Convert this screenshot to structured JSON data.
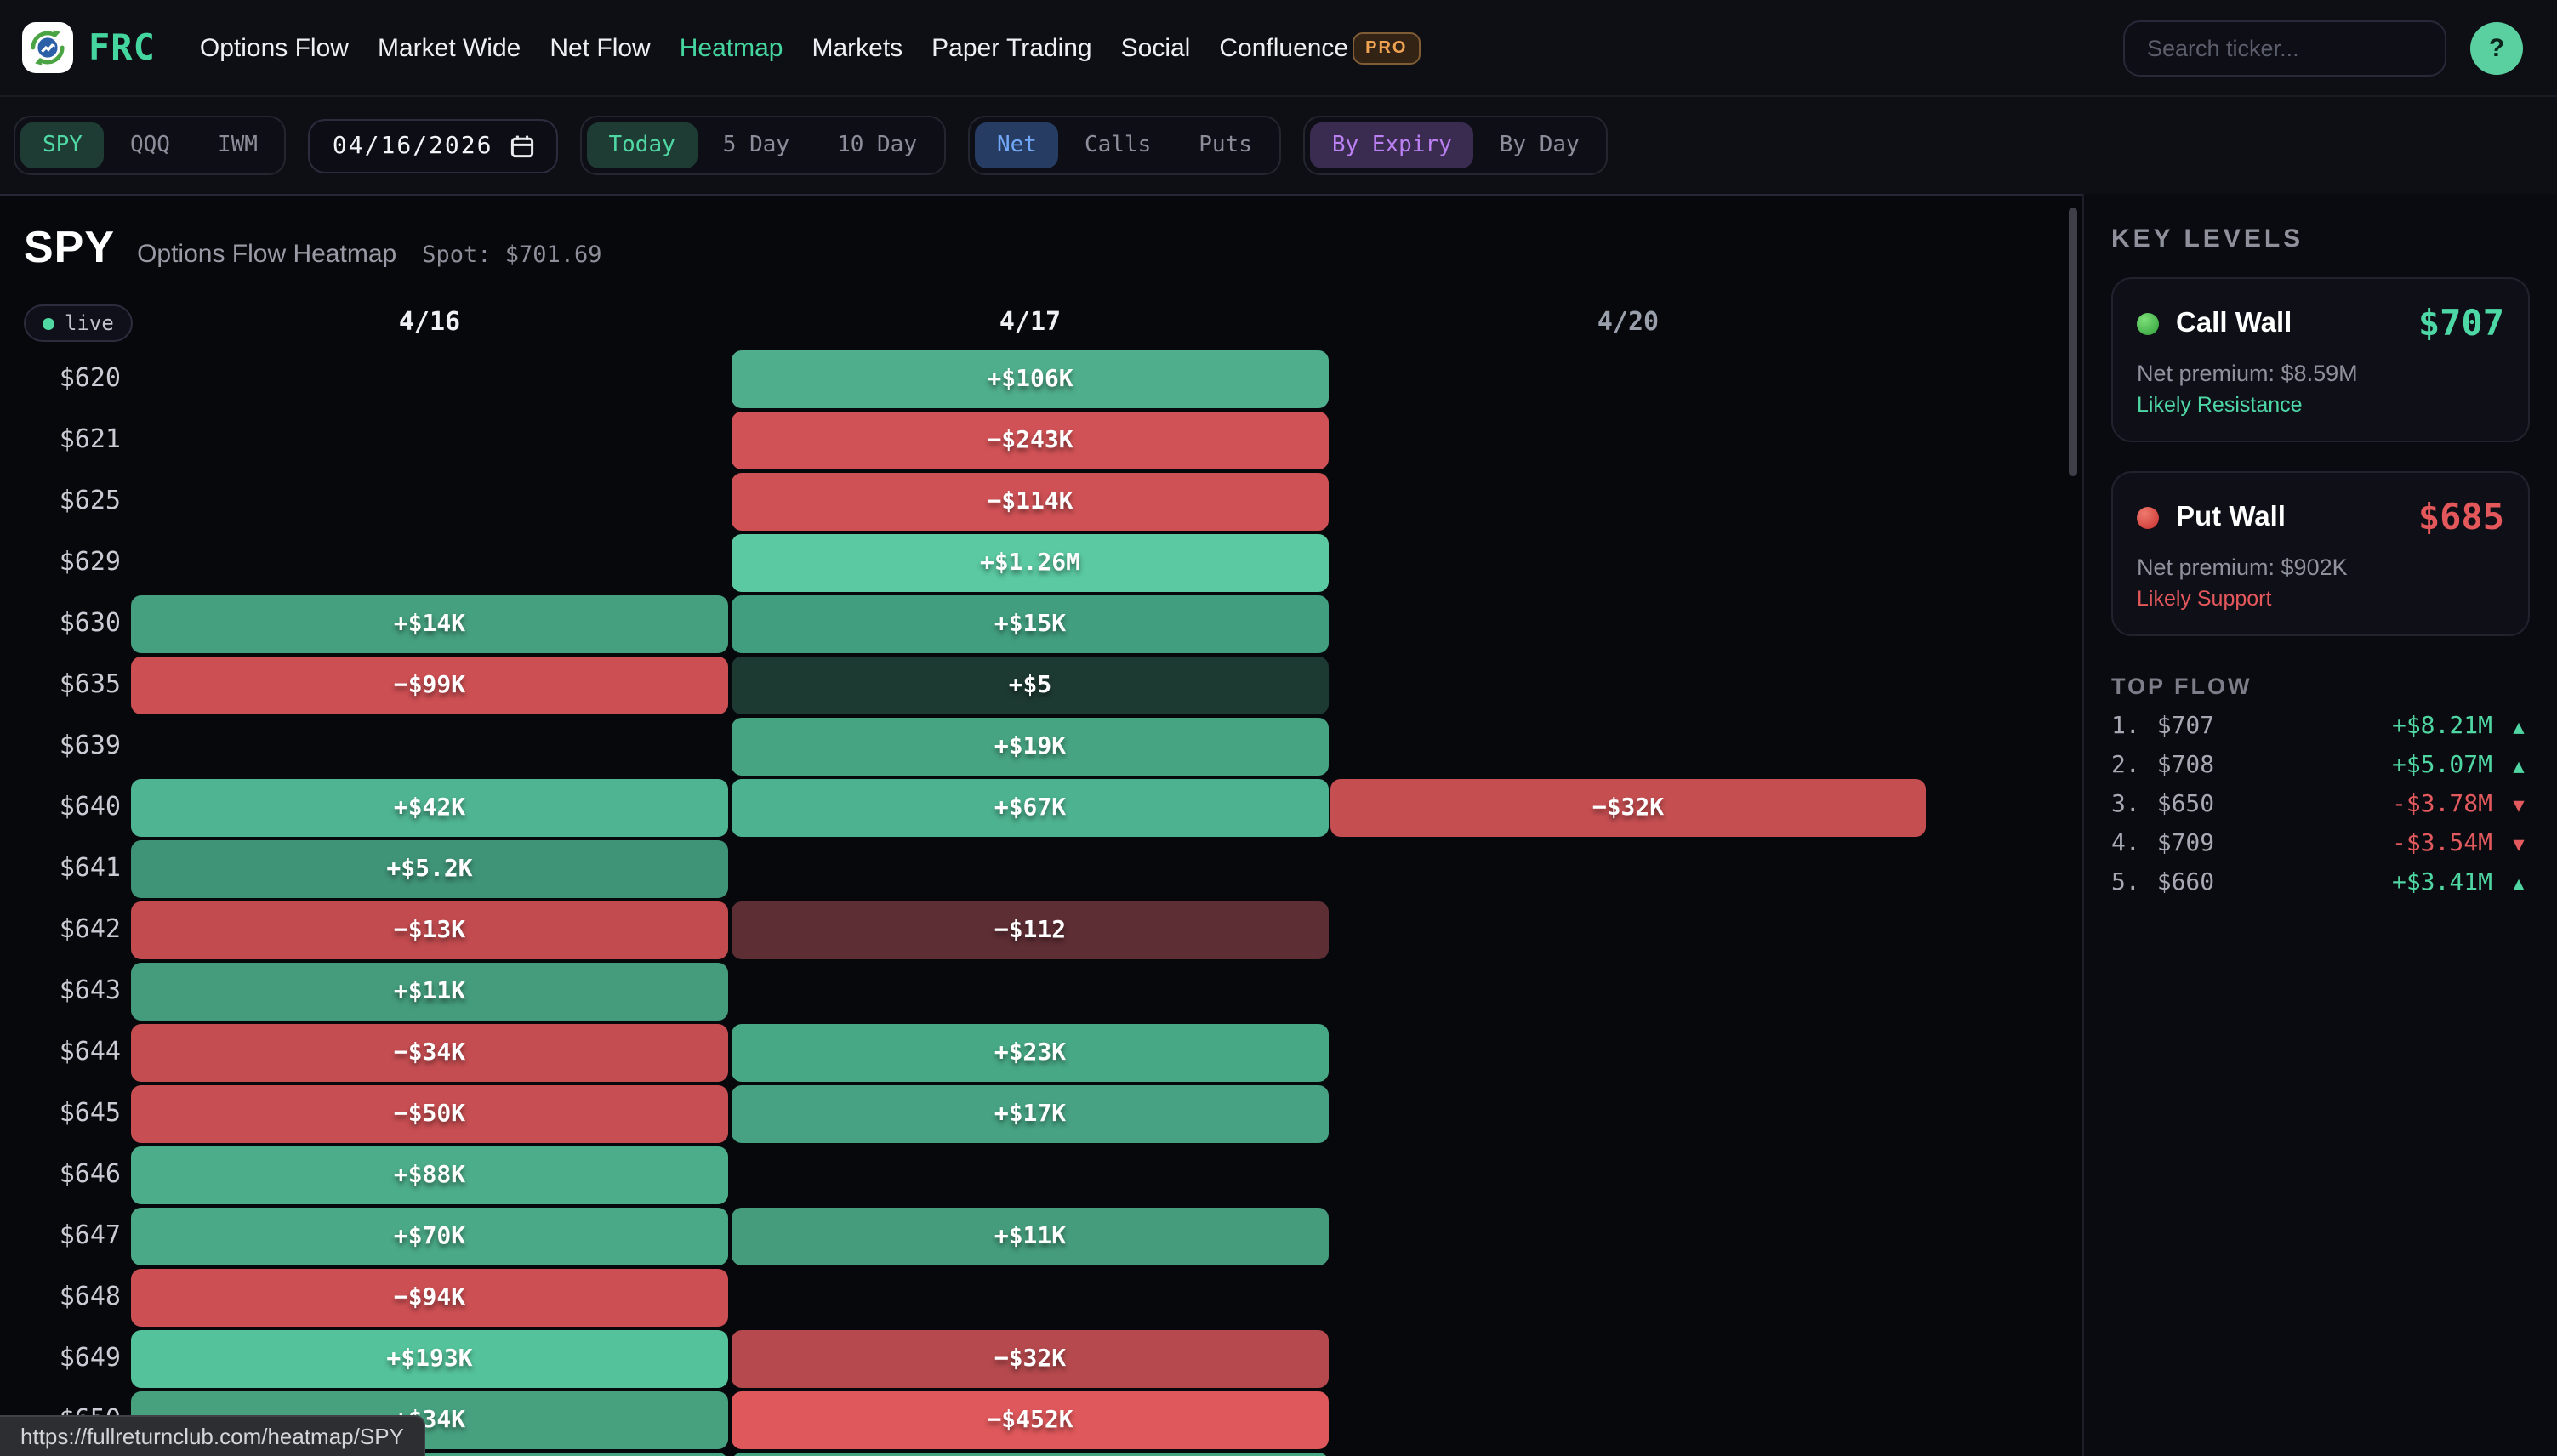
{
  "nav": {
    "brand": "FRC",
    "items": [
      {
        "label": "Options Flow",
        "active": false
      },
      {
        "label": "Market Wide",
        "active": false
      },
      {
        "label": "Net Flow",
        "active": false
      },
      {
        "label": "Heatmap",
        "active": true
      },
      {
        "label": "Markets",
        "active": false
      },
      {
        "label": "Paper Trading",
        "active": false
      },
      {
        "label": "Social",
        "active": false
      },
      {
        "label": "Confluence",
        "active": false
      }
    ],
    "pro_badge": "PRO",
    "search_placeholder": "Search ticker...",
    "help_label": "?"
  },
  "filters": {
    "date": "04/16/2026",
    "groups": [
      {
        "id": "ticker",
        "accent": "teal",
        "selected": "SPY",
        "options": [
          "SPY",
          "QQQ",
          "IWM"
        ]
      },
      {
        "id": "range",
        "accent": "teal",
        "selected": "Today",
        "options": [
          "Today",
          "5 Day",
          "10 Day"
        ]
      },
      {
        "id": "flow-type",
        "accent": "blue",
        "selected": "Net",
        "options": [
          "Net",
          "Calls",
          "Puts"
        ]
      },
      {
        "id": "group-mode",
        "accent": "purple",
        "selected": "By Expiry",
        "options": [
          "By Expiry",
          "By Day"
        ]
      }
    ]
  },
  "heatmap": {
    "symbol": "SPY",
    "subtitle": "Options Flow Heatmap",
    "spot": "Spot: $701.69",
    "live": "live",
    "columns": [
      {
        "label": "4/16",
        "muted": false
      },
      {
        "label": "4/17",
        "muted": false
      },
      {
        "label": "4/20",
        "muted": true
      }
    ],
    "rows": [
      {
        "strike": "$620",
        "cells": [
          null,
          {
            "v": "+$106K",
            "c": "#4fae8c"
          },
          null
        ]
      },
      {
        "strike": "$621",
        "cells": [
          null,
          {
            "v": "−$243K",
            "c": "#d05256"
          },
          null
        ]
      },
      {
        "strike": "$625",
        "cells": [
          null,
          {
            "v": "−$114K",
            "c": "#cf5155"
          },
          null
        ]
      },
      {
        "strike": "$629",
        "cells": [
          null,
          {
            "v": "+$1.26M",
            "c": "#5bc9a2"
          },
          null
        ]
      },
      {
        "strike": "$630",
        "cells": [
          {
            "v": "+$14K",
            "c": "#45a07f"
          },
          {
            "v": "+$15K",
            "c": "#419e7e"
          },
          null
        ]
      },
      {
        "strike": "$635",
        "cells": [
          {
            "v": "−$99K",
            "c": "#cc4f53"
          },
          {
            "v": "+$5",
            "c": "#1d3a32"
          },
          null
        ]
      },
      {
        "strike": "$639",
        "cells": [
          null,
          {
            "v": "+$19K",
            "c": "#46a482"
          },
          null
        ]
      },
      {
        "strike": "$640",
        "cells": [
          {
            "v": "+$42K",
            "c": "#4fb491"
          },
          {
            "v": "+$67K",
            "c": "#4db28f"
          },
          {
            "v": "−$32K",
            "c": "#c54e51"
          }
        ]
      },
      {
        "strike": "$641",
        "cells": [
          {
            "v": "+$5.2K",
            "c": "#3f9376"
          },
          null,
          null
        ]
      },
      {
        "strike": "$642",
        "cells": [
          {
            "v": "−$13K",
            "c": "#c14b4f"
          },
          {
            "v": "−$112",
            "c": "#5d2e34"
          },
          null
        ]
      },
      {
        "strike": "$643",
        "cells": [
          {
            "v": "+$11K",
            "c": "#449c7c"
          },
          null,
          null
        ]
      },
      {
        "strike": "$644",
        "cells": [
          {
            "v": "−$34K",
            "c": "#c44d51"
          },
          {
            "v": "+$23K",
            "c": "#47a885"
          },
          null
        ]
      },
      {
        "strike": "$645",
        "cells": [
          {
            "v": "−$50K",
            "c": "#c74e52"
          },
          {
            "v": "+$17K",
            "c": "#46a282"
          },
          null
        ]
      },
      {
        "strike": "$646",
        "cells": [
          {
            "v": "+$88K",
            "c": "#4cad8a"
          },
          null,
          null
        ]
      },
      {
        "strike": "$647",
        "cells": [
          {
            "v": "+$70K",
            "c": "#4aa987"
          },
          {
            "v": "+$11K",
            "c": "#449c7c"
          },
          null
        ]
      },
      {
        "strike": "$648",
        "cells": [
          {
            "v": "−$94K",
            "c": "#cb4f53"
          },
          null,
          null
        ]
      },
      {
        "strike": "$649",
        "cells": [
          {
            "v": "+$193K",
            "c": "#54c29a"
          },
          {
            "v": "−$32K",
            "c": "#b5494d"
          },
          null
        ]
      },
      {
        "strike": "$650",
        "cells": [
          {
            "v": "+$34K",
            "c": "#47a17f"
          },
          {
            "v": "−$452K",
            "c": "#df585b"
          },
          null
        ]
      },
      {
        "strike": "",
        "cells": [
          {
            "v": "",
            "c": "#46a381"
          },
          {
            "v": "",
            "c": "#46a381"
          },
          null
        ]
      }
    ]
  },
  "sidebar": {
    "key_levels_title": "KEY LEVELS",
    "call_wall": {
      "label": "Call Wall",
      "price": "$707",
      "premium": "Net premium: $8.59M",
      "note": "Likely Resistance"
    },
    "put_wall": {
      "label": "Put Wall",
      "price": "$685",
      "premium": "Net premium: $902K",
      "note": "Likely Support"
    },
    "top_flow": {
      "title": "TOP FLOW",
      "items": [
        {
          "rank": "1.",
          "strike": "$707",
          "value": "+$8.21M",
          "dir": "up",
          "arrow": "▲"
        },
        {
          "rank": "2.",
          "strike": "$708",
          "value": "+$5.07M",
          "dir": "up",
          "arrow": "▲"
        },
        {
          "rank": "3.",
          "strike": "$650",
          "value": "-$3.78M",
          "dir": "down",
          "arrow": "▼"
        },
        {
          "rank": "4.",
          "strike": "$709",
          "value": "-$3.54M",
          "dir": "down",
          "arrow": "▼"
        },
        {
          "rank": "5.",
          "strike": "$660",
          "value": "+$3.41M",
          "dir": "up",
          "arrow": "▲"
        }
      ]
    }
  },
  "status_url": "https://fullreturnclub.com/heatmap/SPY",
  "colors": {
    "accent_teal": "#45d6a0",
    "accent_blue": "#72a8f8",
    "accent_purple": "#bb80f2",
    "pos_green": "#4fd6a2",
    "neg_red": "#e25a5e"
  }
}
